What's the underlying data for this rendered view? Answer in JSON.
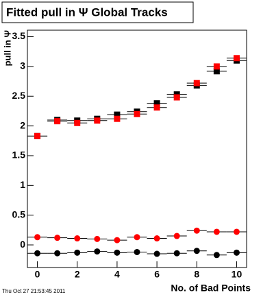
{
  "chart_data": {
    "type": "scatter",
    "title": "Fitted pull in  Ψ   Global Tracks",
    "x_label": "No. of Bad Points",
    "y_label": "pull in Ψ",
    "timestamp": "Thu Oct 27 21:53:45 2011",
    "x": [
      0,
      1,
      2,
      3,
      4,
      5,
      6,
      7,
      8,
      9,
      10
    ],
    "xerr": 0.5,
    "series": [
      {
        "color": "#000000",
        "marker": "square",
        "values": [
          1.83,
          2.1,
          2.09,
          2.12,
          2.19,
          2.24,
          2.38,
          2.53,
          2.68,
          2.92,
          3.1
        ]
      },
      {
        "color": "#ff0000",
        "marker": "square",
        "values": [
          1.83,
          2.08,
          2.05,
          2.09,
          2.12,
          2.2,
          2.31,
          2.48,
          2.72,
          3.0,
          3.14
        ]
      },
      {
        "color": "#ff0000",
        "marker": "circle",
        "values": [
          0.13,
          0.12,
          0.11,
          0.1,
          0.08,
          0.13,
          0.11,
          0.15,
          0.24,
          0.22,
          0.22
        ]
      },
      {
        "color": "#000000",
        "marker": "circle",
        "values": [
          -0.14,
          -0.14,
          -0.13,
          -0.11,
          -0.13,
          -0.12,
          -0.15,
          -0.14,
          -0.1,
          -0.17,
          -0.13
        ]
      }
    ],
    "xlim": [
      -0.5,
      10.5
    ],
    "ylim": [
      -0.38,
      3.61
    ],
    "xticks": [
      0,
      2,
      4,
      6,
      8,
      10
    ],
    "yticks": [
      0,
      0.5,
      1,
      1.5,
      2,
      2.5,
      3,
      3.5
    ],
    "grid": false
  }
}
